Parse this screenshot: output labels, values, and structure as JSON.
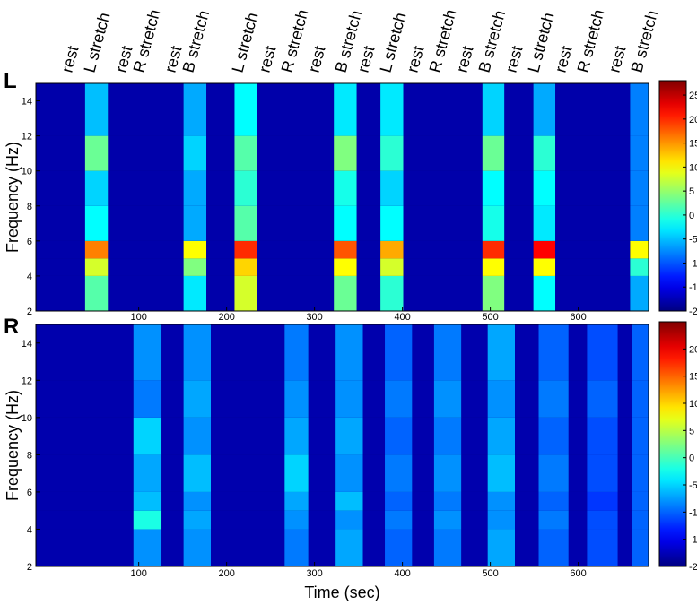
{
  "chart_data": [
    {
      "type": "heatmap",
      "panel_label": "L",
      "ylabel": "Frequency (Hz)",
      "colormap": "jet",
      "annotations": [
        "rest",
        "L stretch",
        "rest",
        "R stretch",
        "rest",
        "B stretch",
        "L stretch",
        "rest",
        "R stretch",
        "rest",
        "B stretch",
        "rest",
        "L stretch",
        "rest",
        "R stretch",
        "rest",
        "B stretch",
        "rest",
        "L stretch",
        "rest",
        "R stretch",
        "rest",
        "B stretch"
      ],
      "xlim": [
        -17,
        680
      ],
      "xticks": [
        100,
        200,
        300,
        400,
        500,
        600
      ],
      "ylim": [
        2,
        15
      ],
      "yticks": [
        2,
        4,
        6,
        8,
        10,
        12,
        14
      ],
      "zlim": [
        -20,
        28
      ],
      "zticks": [
        -20,
        -15,
        -10,
        -5,
        0,
        5,
        10,
        15,
        20,
        25
      ],
      "x_bins": [
        -17,
        39,
        65,
        151,
        177,
        209,
        235,
        322,
        348,
        375,
        401,
        491,
        516,
        549,
        574,
        659,
        680
      ],
      "y_bins": [
        2,
        4,
        5,
        6,
        8,
        10,
        12,
        15
      ],
      "z": [
        [
          -18,
          2,
          -18,
          -3,
          -18,
          8,
          -18,
          3,
          -18,
          0,
          -18,
          4,
          -18,
          -2,
          -18,
          -6
        ],
        [
          -18,
          8,
          -18,
          4,
          -18,
          12,
          -18,
          10,
          -18,
          8,
          -18,
          10,
          -18,
          10,
          -18,
          0
        ],
        [
          -18,
          16,
          -18,
          10,
          -18,
          20,
          -18,
          18,
          -18,
          14,
          -18,
          20,
          -18,
          22,
          -18,
          10
        ],
        [
          -18,
          -2,
          -18,
          -6,
          -18,
          2,
          -18,
          -2,
          -18,
          -2,
          -18,
          -1,
          -18,
          -3,
          -18,
          -8
        ],
        [
          -18,
          -4,
          -18,
          -6,
          -18,
          0,
          -18,
          -1,
          -18,
          -4,
          -18,
          -2,
          -18,
          -2,
          -18,
          -8
        ],
        [
          -18,
          3,
          -18,
          -4,
          -18,
          2,
          -18,
          4,
          -18,
          0,
          -18,
          3,
          -18,
          0,
          -18,
          -8
        ],
        [
          -18,
          -5,
          -18,
          -6,
          -18,
          -2,
          -18,
          -3,
          -18,
          -3,
          -18,
          -4,
          -18,
          -6,
          -18,
          -8
        ]
      ]
    },
    {
      "type": "heatmap",
      "panel_label": "R",
      "ylabel": "Frequency (Hz)",
      "xlabel": "Time (sec)",
      "colormap": "jet",
      "xlim": [
        -17,
        680
      ],
      "xticks": [
        100,
        200,
        300,
        400,
        500,
        600
      ],
      "ylim": [
        2,
        15
      ],
      "yticks": [
        2,
        4,
        6,
        8,
        10,
        12,
        14
      ],
      "zlim": [
        -20,
        25
      ],
      "zticks": [
        -20,
        -15,
        -10,
        -5,
        0,
        5,
        10,
        15,
        20
      ],
      "x_bins": [
        -17,
        94,
        126,
        151,
        182,
        266,
        293,
        324,
        355,
        380,
        411,
        436,
        467,
        497,
        528,
        555,
        589,
        610,
        645,
        661,
        680
      ],
      "y_bins": [
        2,
        4,
        5,
        6,
        8,
        10,
        12,
        15
      ],
      "z": [
        [
          -18,
          -8,
          -18,
          -8,
          -18,
          -9,
          -18,
          -7,
          -18,
          -10,
          -18,
          -9,
          -18,
          -7,
          -18,
          -10,
          -18,
          -11,
          -18,
          -10
        ],
        [
          -18,
          -2,
          -18,
          -7,
          -18,
          -8,
          -18,
          -8,
          -18,
          -9,
          -18,
          -8,
          -18,
          -8,
          -18,
          -9,
          -18,
          -11,
          -18,
          -10
        ],
        [
          -18,
          -6,
          -18,
          -8,
          -18,
          -7,
          -18,
          -6,
          -18,
          -10,
          -18,
          -9,
          -18,
          -8,
          -18,
          -10,
          -18,
          -12,
          -18,
          -10
        ],
        [
          -18,
          -7,
          -18,
          -6,
          -18,
          -5,
          -18,
          -8,
          -18,
          -9,
          -18,
          -8,
          -18,
          -6,
          -18,
          -9,
          -18,
          -11,
          -18,
          -10
        ],
        [
          -18,
          -5,
          -18,
          -8,
          -18,
          -7,
          -18,
          -7,
          -18,
          -10,
          -18,
          -9,
          -18,
          -7,
          -18,
          -10,
          -18,
          -11,
          -18,
          -10
        ],
        [
          -18,
          -9,
          -18,
          -7,
          -18,
          -8,
          -18,
          -8,
          -18,
          -9,
          -18,
          -8,
          -18,
          -8,
          -18,
          -9,
          -18,
          -10,
          -18,
          -10
        ],
        [
          -18,
          -8,
          -18,
          -8,
          -18,
          -9,
          -18,
          -8,
          -18,
          -10,
          -18,
          -9,
          -18,
          -7,
          -18,
          -10,
          -18,
          -11,
          -18,
          -10
        ]
      ]
    }
  ]
}
